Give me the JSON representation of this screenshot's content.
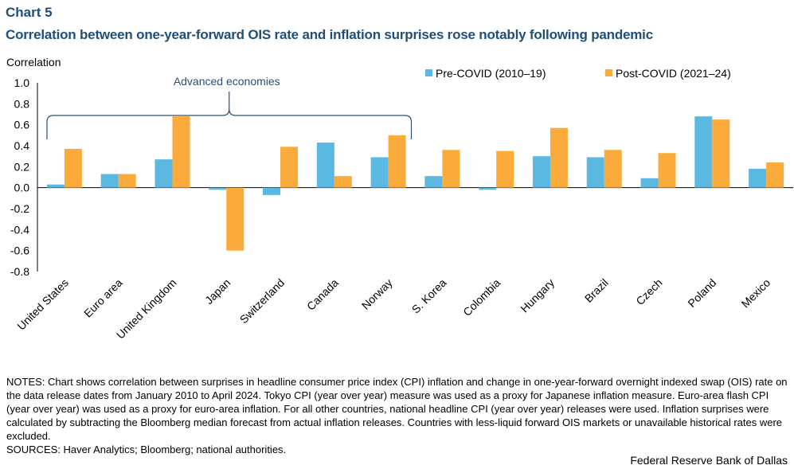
{
  "header": {
    "chart_number": "Chart 5",
    "title": "Correlation between one-year-forward OIS rate and inflation surprises rose notably following pandemic"
  },
  "chart_data": {
    "type": "bar",
    "ylabel": "Correlation",
    "ylim": [
      -0.8,
      1.0
    ],
    "yticks": [
      "1.0",
      "0.8",
      "0.6",
      "0.4",
      "0.2",
      "0.0",
      "-0.2",
      "-0.4",
      "-0.6",
      "-0.8"
    ],
    "yticks_values": [
      1.0,
      0.8,
      0.6,
      0.4,
      0.2,
      0.0,
      -0.2,
      -0.4,
      -0.6,
      -0.8
    ],
    "grid": false,
    "legend_position": "top-right",
    "categories": [
      "United States",
      "Euro area",
      "United Kingdom",
      "Japan",
      "Switzerland",
      "Canada",
      "Norway",
      "S. Korea",
      "Colombia",
      "Hungary",
      "Brazil",
      "Czech",
      "Poland",
      "Mexico"
    ],
    "series": [
      {
        "name": "Pre-COVID (2010–19)",
        "color": "#5bb8e0",
        "values": [
          0.03,
          0.13,
          0.27,
          -0.02,
          -0.07,
          0.43,
          0.29,
          0.11,
          -0.02,
          0.3,
          0.29,
          0.09,
          0.68,
          0.18
        ]
      },
      {
        "name": "Post-COVID (2021–24)",
        "color": "#fbab3c",
        "values": [
          0.37,
          0.13,
          0.68,
          -0.6,
          0.39,
          0.11,
          0.5,
          0.36,
          0.35,
          0.57,
          0.36,
          0.33,
          0.65,
          0.24
        ]
      }
    ],
    "annotation": {
      "text": "Advanced economies",
      "spans_categories": [
        "United States",
        "Norway"
      ]
    }
  },
  "footer": {
    "notes": "NOTES: Chart shows correlation between surprises in headline consumer price index (CPI) inflation and change in one-year-forward overnight indexed swap (OIS) rate on the data release dates from January 2010 to April 2024. Tokyo CPI (year over year) measure was used as a proxy for Japanese inflation measure. Euro-area flash CPI (year over year) was used as a proxy for euro-area inflation. For all other countries, national headline CPI (year over year) releases were used. Inflation surprises were calculated by subtracting the Bloomberg median forecast from actual inflation releases. Countries with less-liquid forward OIS markets or unavailable historical rates were excluded.",
    "sources": "SOURCES: Haver Analytics; Bloomberg; national authorities.",
    "credit": "Federal Reserve Bank of Dallas"
  }
}
